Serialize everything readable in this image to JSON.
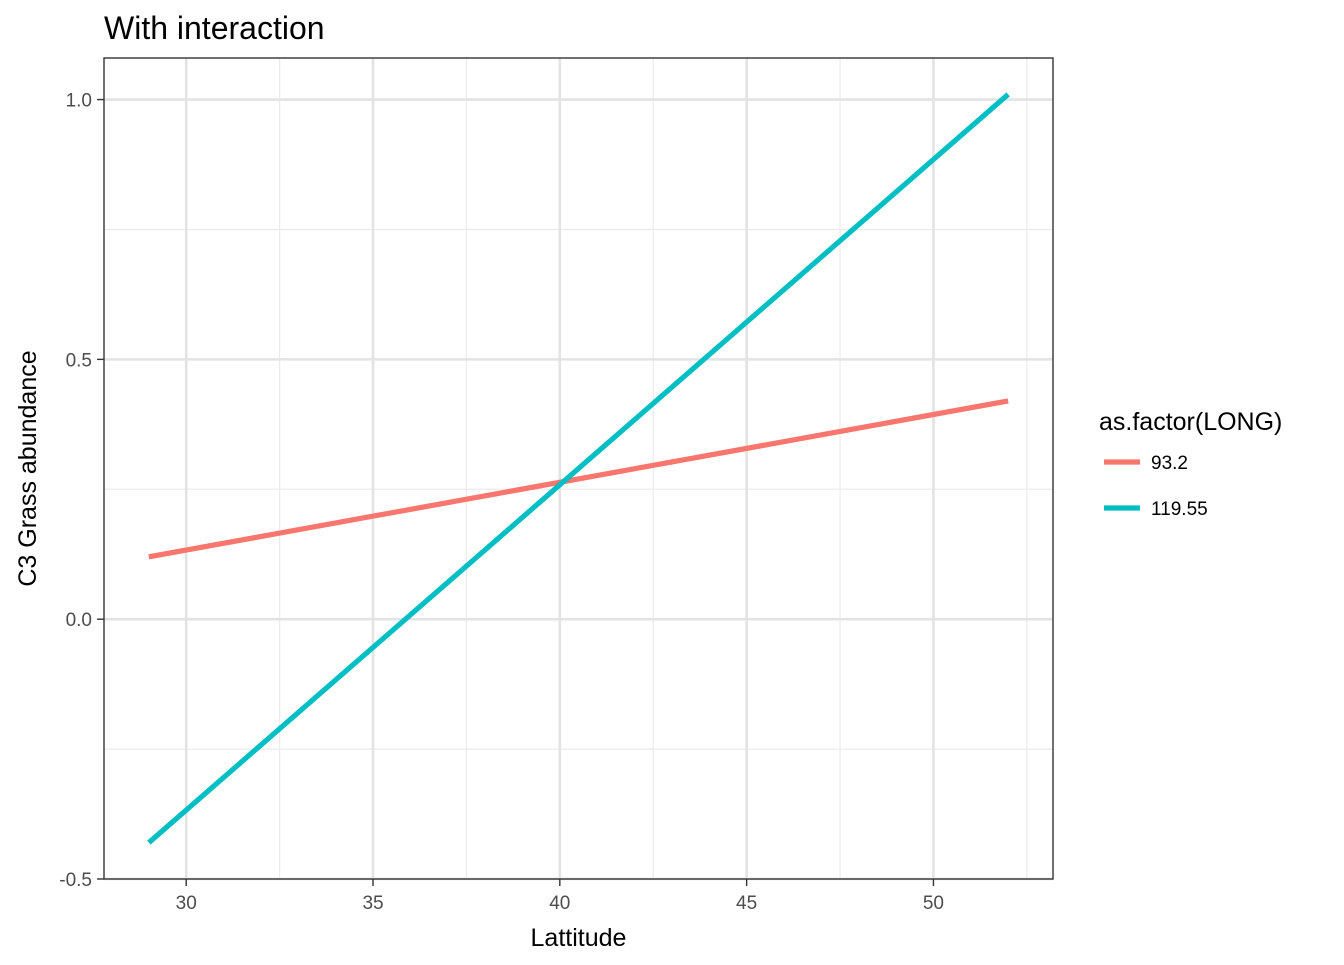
{
  "chart_data": {
    "type": "line",
    "title": "With interaction",
    "xlabel": "Lattitude",
    "ylabel": "C3 Grass abundance",
    "xlim": [
      27.8,
      53.2
    ],
    "ylim": [
      -0.5,
      1.08
    ],
    "x_ticks": [
      30,
      35,
      40,
      45,
      50
    ],
    "x_tick_labels": [
      "30",
      "35",
      "40",
      "45",
      "50"
    ],
    "y_ticks": [
      -0.5,
      0.0,
      0.5,
      1.0
    ],
    "y_tick_labels": [
      "-0.5",
      "0.0",
      "0.5",
      "1.0"
    ],
    "grid": true,
    "legend": {
      "title": "as.factor(LONG)",
      "position": "right"
    },
    "series": [
      {
        "name": "93.2",
        "color": "#F8766D",
        "x": [
          29,
          52
        ],
        "y": [
          0.12,
          0.42
        ]
      },
      {
        "name": "119.55",
        "color": "#00BFC4",
        "x": [
          29,
          52
        ],
        "y": [
          -0.43,
          1.01
        ]
      }
    ]
  }
}
